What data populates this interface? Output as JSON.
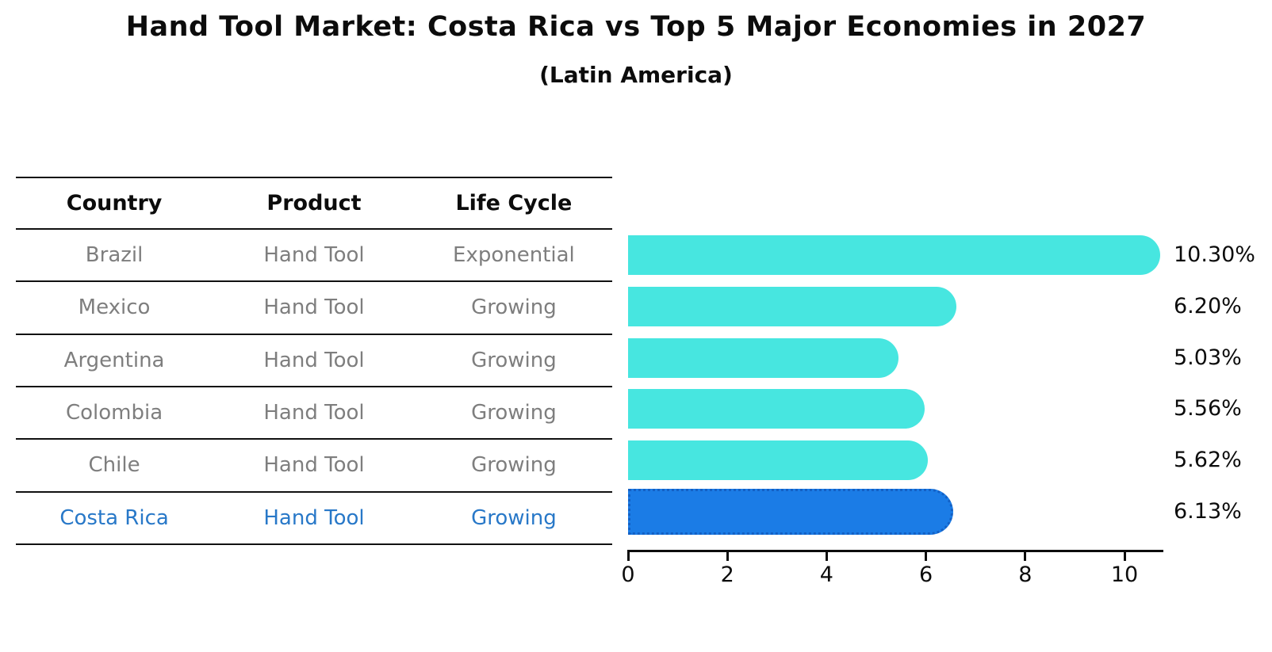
{
  "title": "Hand Tool Market: Costa Rica vs Top 5 Major Economies in 2027",
  "subtitle": "(Latin America)",
  "table": {
    "headers": [
      "Country",
      "Product",
      "Life Cycle"
    ],
    "rows": [
      {
        "country": "Brazil",
        "product": "Hand Tool",
        "life_cycle": "Exponential",
        "highlight": false
      },
      {
        "country": "Mexico",
        "product": "Hand Tool",
        "life_cycle": "Growing",
        "highlight": false
      },
      {
        "country": "Argentina",
        "product": "Hand Tool",
        "life_cycle": "Growing",
        "highlight": false
      },
      {
        "country": "Colombia",
        "product": "Hand Tool",
        "life_cycle": "Growing",
        "highlight": false
      },
      {
        "country": "Chile",
        "product": "Hand Tool",
        "life_cycle": "Growing",
        "highlight": false
      },
      {
        "country": "Costa Rica",
        "product": "Hand Tool",
        "life_cycle": "Growing",
        "highlight": true
      }
    ]
  },
  "chart_data": {
    "type": "bar",
    "orientation": "horizontal",
    "title": "Hand Tool Market: Costa Rica vs Top 5 Major Economies in 2027",
    "subtitle": "(Latin America)",
    "categories": [
      "Brazil",
      "Mexico",
      "Argentina",
      "Colombia",
      "Chile",
      "Costa Rica"
    ],
    "values": [
      10.3,
      6.2,
      5.03,
      5.56,
      5.62,
      6.13
    ],
    "value_labels": [
      "10.30%",
      "6.20%",
      "5.03%",
      "5.56%",
      "5.62%",
      "6.13%"
    ],
    "x_ticks": [
      "0",
      "2",
      "4",
      "6",
      "8",
      "10"
    ],
    "xlim": [
      0,
      10.78
    ],
    "grid": false,
    "legend": "none",
    "bar_color": "#47e6e0",
    "highlight_color": "#1b7ce6",
    "highlight_edge_color": "#1360c4",
    "highlight_index": 5,
    "highlight_text_color": "#2878c8",
    "row_text_color": "#7e7e7e"
  }
}
